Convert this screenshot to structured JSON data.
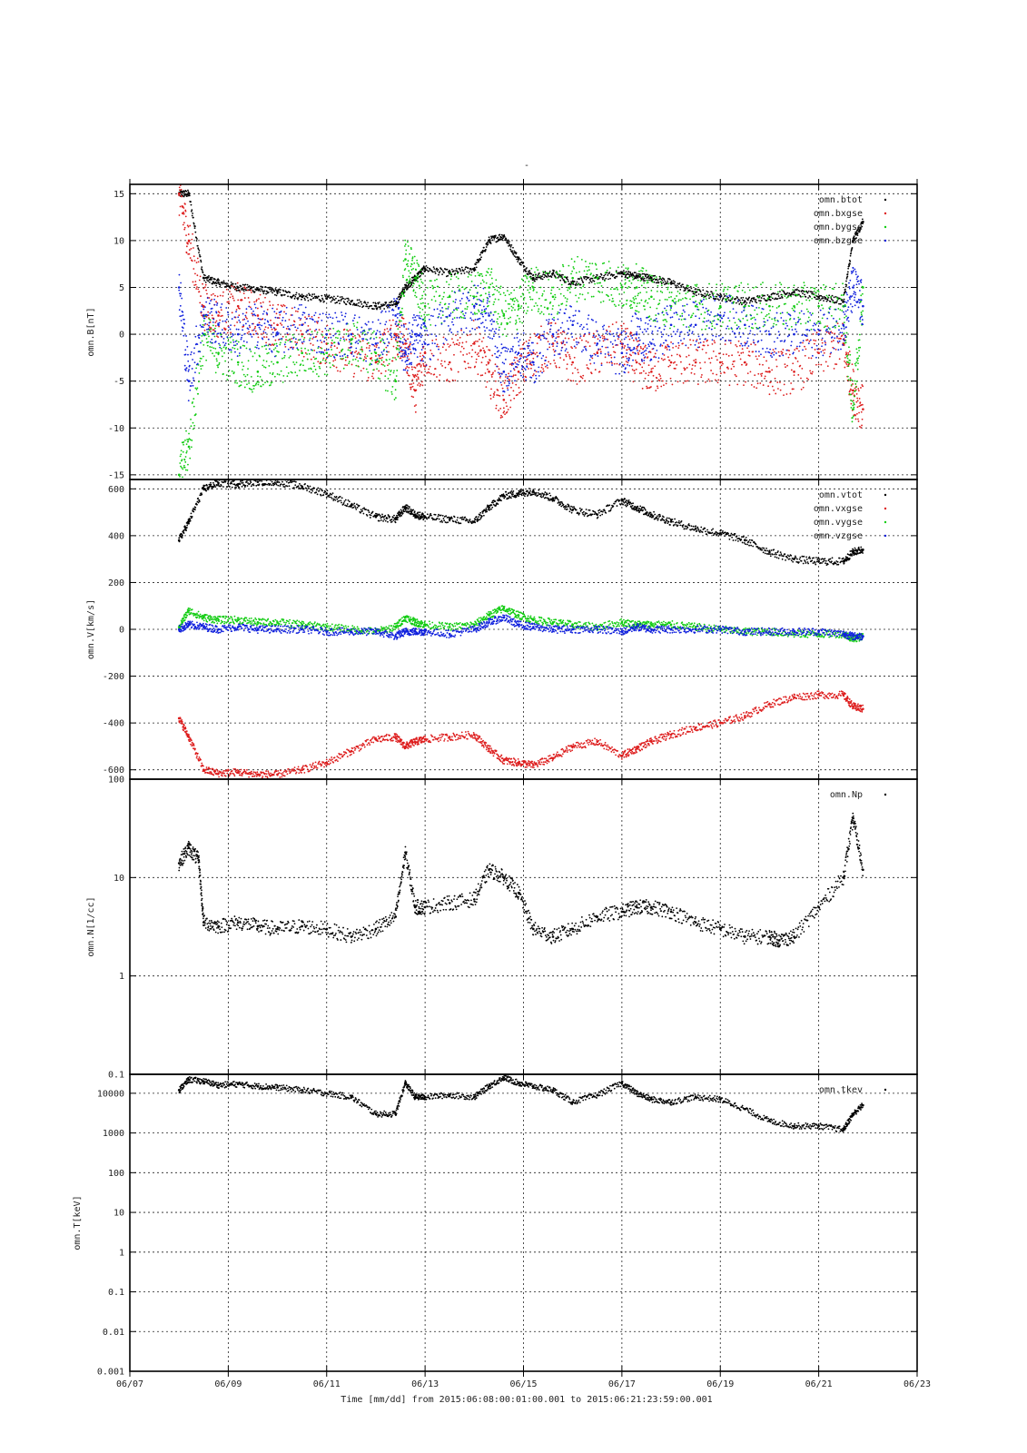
{
  "figure": {
    "title": "-",
    "xlabel": "Time [mm/dd]  from 2015:06:08:00:01:00.001  to  2015:06:21:23:59:00.001"
  },
  "x_axis": {
    "domain": [
      0,
      16
    ],
    "ticks": [
      0,
      2,
      4,
      6,
      8,
      10,
      12,
      14,
      16
    ],
    "tick_labels": [
      "06/07",
      "06/09",
      "06/11",
      "06/13",
      "06/15",
      "06/17",
      "06/19",
      "06/21",
      "06/23"
    ]
  },
  "colors": {
    "black": "#000000",
    "red": "#dd1c1c",
    "green": "#11cc11",
    "blue": "#1020dd"
  },
  "chart_data": [
    {
      "type": "scatter",
      "ylabel": "omn.B[nT]",
      "ylim": [
        -15.5,
        16
      ],
      "yscale": "linear",
      "yticks": [
        -15,
        -10,
        -5,
        0,
        5,
        10,
        15
      ],
      "legend_position": "top-right",
      "series": [
        {
          "name": "omn.btot",
          "color": "#000000",
          "x": [
            1.0,
            1.2,
            1.5,
            1.8,
            2.2,
            2.6,
            3.0,
            3.5,
            4.0,
            4.5,
            5.0,
            5.4,
            5.6,
            5.8,
            6.0,
            6.5,
            7.0,
            7.3,
            7.6,
            7.9,
            8.2,
            8.6,
            9.0,
            9.5,
            10.0,
            10.3,
            10.6,
            11.0,
            11.5,
            12.0,
            12.5,
            13.0,
            13.5,
            14.0,
            14.5,
            14.7,
            14.9
          ],
          "y": [
            15,
            15,
            6,
            5.5,
            5,
            4.8,
            4.5,
            4,
            3.8,
            3.5,
            3,
            3.2,
            5,
            6,
            7,
            6.5,
            7,
            10,
            10.5,
            8,
            6,
            6.5,
            5.5,
            6,
            6.5,
            6.2,
            6,
            5.5,
            4.5,
            4,
            3.5,
            4,
            4.5,
            4,
            3.5,
            10,
            12
          ]
        },
        {
          "name": "omn.bxgse",
          "color": "#dd1c1c",
          "x": [
            1.0,
            1.2,
            1.5,
            1.8,
            2.2,
            2.6,
            3.0,
            3.5,
            4.0,
            4.5,
            5.0,
            5.4,
            5.6,
            5.8,
            6.0,
            6.5,
            7.0,
            7.3,
            7.6,
            7.9,
            8.2,
            8.6,
            9.0,
            9.5,
            10.0,
            10.3,
            10.6,
            11.0,
            11.5,
            12.0,
            12.5,
            13.0,
            13.5,
            14.0,
            14.5,
            14.7,
            14.9
          ],
          "y": [
            15,
            10,
            3,
            2,
            3,
            2,
            1,
            0,
            -1,
            -2,
            -3,
            0,
            -1,
            -6,
            -2,
            -3,
            -1,
            -4,
            -7,
            -4,
            -2,
            -1,
            -3,
            -2,
            -1,
            -3,
            -4,
            -3,
            -3,
            -3,
            -3,
            -4,
            -4,
            -2,
            -1,
            -6,
            -8
          ]
        },
        {
          "name": "omn.bygse",
          "color": "#11cc11",
          "x": [
            1.0,
            1.2,
            1.5,
            1.8,
            2.2,
            2.6,
            3.0,
            3.5,
            4.0,
            4.5,
            5.0,
            5.4,
            5.6,
            5.8,
            6.0,
            6.5,
            7.0,
            7.3,
            7.6,
            7.9,
            8.2,
            8.6,
            9.0,
            9.5,
            10.0,
            10.3,
            10.6,
            11.0,
            11.5,
            12.0,
            12.5,
            13.0,
            13.5,
            14.0,
            14.5,
            14.7,
            14.9
          ],
          "y": [
            -15,
            -12,
            0,
            -2,
            -3,
            -4,
            -3,
            -2,
            -2,
            -1,
            -2,
            -5,
            8,
            6,
            3,
            4,
            4,
            5,
            2,
            3,
            5,
            4,
            6,
            6,
            5,
            5,
            4,
            3,
            3,
            3,
            3,
            3,
            3,
            3,
            3,
            -8,
            5
          ]
        },
        {
          "name": "omn.bzgse",
          "color": "#1020dd",
          "x": [
            1.0,
            1.2,
            1.5,
            1.8,
            2.2,
            2.6,
            3.0,
            3.5,
            4.0,
            4.5,
            5.0,
            5.4,
            5.6,
            5.8,
            6.0,
            6.5,
            7.0,
            7.3,
            7.6,
            7.9,
            8.2,
            8.6,
            9.0,
            9.5,
            10.0,
            10.3,
            10.6,
            11.0,
            11.5,
            12.0,
            12.5,
            13.0,
            13.5,
            14.0,
            14.5,
            14.7,
            14.9
          ],
          "y": [
            5,
            -5,
            2,
            1,
            0,
            1,
            0,
            1,
            0,
            0,
            -1,
            2,
            -2,
            0,
            -1,
            2,
            3,
            2,
            -4,
            -2,
            -3,
            0,
            1,
            -1,
            -2,
            0,
            -1,
            1,
            1,
            2,
            1,
            0,
            0,
            0,
            1,
            5,
            3
          ]
        }
      ]
    },
    {
      "type": "scatter",
      "ylabel": "omn.V[km/s]",
      "ylim": [
        -640,
        640
      ],
      "yscale": "linear",
      "yticks": [
        -600,
        -400,
        -200,
        0,
        200,
        400,
        600
      ],
      "legend_position": "top-right",
      "series": [
        {
          "name": "omn.vtot",
          "color": "#000000",
          "x": [
            1.0,
            1.2,
            1.5,
            1.8,
            2.2,
            2.6,
            3.0,
            3.5,
            4.0,
            4.5,
            5.0,
            5.4,
            5.6,
            5.8,
            6.0,
            6.5,
            7.0,
            7.3,
            7.6,
            7.9,
            8.2,
            8.6,
            9.0,
            9.5,
            10.0,
            10.3,
            10.6,
            11.0,
            11.5,
            12.0,
            12.5,
            13.0,
            13.5,
            14.0,
            14.5,
            14.7,
            14.9
          ],
          "y": [
            380,
            460,
            600,
            625,
            620,
            630,
            630,
            610,
            580,
            530,
            480,
            470,
            520,
            490,
            480,
            470,
            460,
            520,
            570,
            580,
            590,
            560,
            510,
            490,
            550,
            520,
            490,
            460,
            430,
            410,
            380,
            330,
            300,
            290,
            290,
            330,
            340
          ]
        },
        {
          "name": "omn.vxgse",
          "color": "#dd1c1c",
          "x": [
            1.0,
            1.2,
            1.5,
            1.8,
            2.2,
            2.6,
            3.0,
            3.5,
            4.0,
            4.5,
            5.0,
            5.4,
            5.6,
            5.8,
            6.0,
            6.5,
            7.0,
            7.3,
            7.6,
            7.9,
            8.2,
            8.6,
            9.0,
            9.5,
            10.0,
            10.3,
            10.6,
            11.0,
            11.5,
            12.0,
            12.5,
            13.0,
            13.5,
            14.0,
            14.5,
            14.7,
            14.9
          ],
          "y": [
            -380,
            -460,
            -600,
            -615,
            -610,
            -620,
            -620,
            -600,
            -570,
            -520,
            -470,
            -460,
            -500,
            -480,
            -470,
            -460,
            -450,
            -510,
            -560,
            -570,
            -580,
            -550,
            -500,
            -480,
            -540,
            -510,
            -480,
            -450,
            -420,
            -400,
            -370,
            -320,
            -290,
            -280,
            -280,
            -330,
            -340
          ]
        },
        {
          "name": "omn.vygse",
          "color": "#11cc11",
          "x": [
            1.0,
            1.2,
            1.5,
            1.8,
            2.2,
            2.6,
            3.0,
            3.5,
            4.0,
            4.5,
            5.0,
            5.4,
            5.6,
            5.8,
            6.0,
            6.5,
            7.0,
            7.3,
            7.6,
            7.9,
            8.2,
            8.6,
            9.0,
            9.5,
            10.0,
            10.3,
            10.6,
            11.0,
            11.5,
            12.0,
            12.5,
            13.0,
            13.5,
            14.0,
            14.5,
            14.7,
            14.9
          ],
          "y": [
            10,
            80,
            50,
            40,
            40,
            30,
            30,
            20,
            10,
            0,
            -10,
            10,
            50,
            30,
            20,
            10,
            20,
            60,
            90,
            60,
            40,
            30,
            20,
            10,
            30,
            20,
            20,
            20,
            10,
            0,
            -10,
            -10,
            -20,
            -20,
            -20,
            -40,
            -30
          ]
        },
        {
          "name": "omn.vzgse",
          "color": "#1020dd",
          "x": [
            1.0,
            1.2,
            1.5,
            1.8,
            2.2,
            2.6,
            3.0,
            3.5,
            4.0,
            4.5,
            5.0,
            5.4,
            5.6,
            5.8,
            6.0,
            6.5,
            7.0,
            7.3,
            7.6,
            7.9,
            8.2,
            8.6,
            9.0,
            9.5,
            10.0,
            10.3,
            10.6,
            11.0,
            11.5,
            12.0,
            12.5,
            13.0,
            13.5,
            14.0,
            14.5,
            14.7,
            14.9
          ],
          "y": [
            0,
            20,
            10,
            0,
            10,
            0,
            0,
            0,
            -10,
            -10,
            -10,
            -30,
            -10,
            -10,
            -10,
            -20,
            0,
            30,
            50,
            20,
            10,
            0,
            0,
            0,
            -10,
            10,
            0,
            0,
            0,
            0,
            -10,
            -10,
            -10,
            -10,
            -20,
            -30,
            -30
          ]
        }
      ]
    },
    {
      "type": "scatter",
      "ylabel": "omn.N[1/cc]",
      "ylim": [
        0.1,
        100
      ],
      "yscale": "log",
      "yticks": [
        0.1,
        1,
        10,
        100
      ],
      "legend_position": "top-right",
      "series": [
        {
          "name": "omn.Np",
          "color": "#000000",
          "x": [
            1.0,
            1.2,
            1.4,
            1.5,
            1.8,
            2.2,
            2.6,
            3.0,
            3.5,
            4.0,
            4.5,
            5.0,
            5.4,
            5.6,
            5.8,
            6.0,
            6.5,
            7.0,
            7.3,
            7.6,
            7.9,
            8.2,
            8.6,
            9.0,
            9.5,
            10.0,
            10.3,
            10.6,
            11.0,
            11.5,
            12.0,
            12.5,
            13.0,
            13.2,
            13.5,
            14.0,
            14.5,
            14.7,
            14.9
          ],
          "y": [
            14,
            20,
            15,
            3.5,
            3.2,
            3.5,
            3.2,
            3,
            3.2,
            3,
            2.5,
            3,
            4,
            18,
            5,
            5,
            5.5,
            6,
            12,
            10,
            7,
            3,
            2.5,
            3,
            4,
            4.5,
            5,
            5,
            4.5,
            3.5,
            3,
            2.5,
            2.5,
            2.3,
            2.5,
            5,
            10,
            40,
            12
          ]
        }
      ]
    },
    {
      "type": "scatter",
      "ylabel": "omn.T[keV]",
      "ylim": [
        0.001,
        30000
      ],
      "yscale": "log",
      "yticks": [
        0.001,
        0.01,
        0.1,
        1,
        10,
        100,
        1000,
        10000
      ],
      "legend_position": "top-right",
      "series": [
        {
          "name": "omn.tkev",
          "color": "#000000",
          "x": [
            1.0,
            1.2,
            1.5,
            1.8,
            2.2,
            2.6,
            3.0,
            3.5,
            4.0,
            4.5,
            5.0,
            5.4,
            5.6,
            5.8,
            6.0,
            6.5,
            7.0,
            7.3,
            7.6,
            7.9,
            8.2,
            8.6,
            9.0,
            9.5,
            10.0,
            10.3,
            10.6,
            11.0,
            11.5,
            12.0,
            12.5,
            13.0,
            13.5,
            14.0,
            14.5,
            14.7,
            14.9
          ],
          "y": [
            12000,
            22000,
            20000,
            16000,
            17000,
            15000,
            14000,
            12000,
            10000,
            8000,
            3000,
            3000,
            18000,
            8000,
            8000,
            9000,
            8000,
            15000,
            25000,
            18000,
            15000,
            12000,
            6000,
            9000,
            18000,
            10000,
            7000,
            6000,
            8000,
            7000,
            4000,
            2000,
            1500,
            1500,
            1200,
            3000,
            5000
          ]
        }
      ]
    }
  ]
}
